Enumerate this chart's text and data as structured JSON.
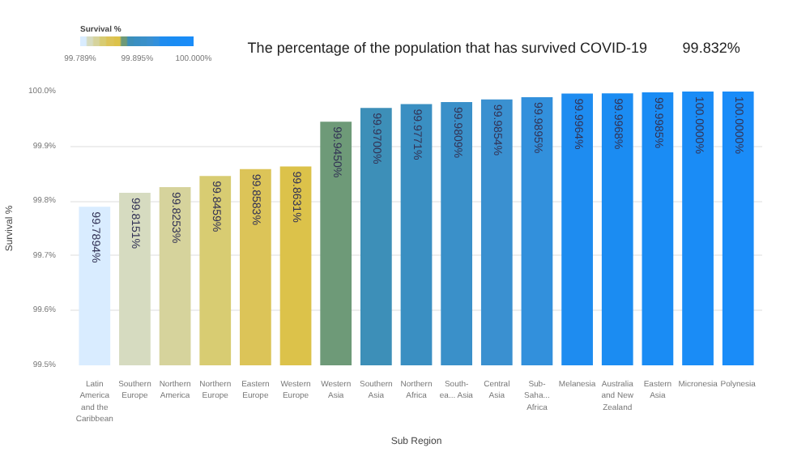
{
  "chart_data": {
    "type": "bar",
    "title": "The percentage of the population that has survived COVID-19",
    "annotations": [
      "99.832%"
    ],
    "xlabel": "Sub Region",
    "ylabel": "Survival %",
    "categories": [
      "Latin America and the Caribbean",
      "Southern Europe",
      "Northern America",
      "Northern Europe",
      "Eastern Europe",
      "Western Europe",
      "Western Asia",
      "Southern Asia",
      "Northern Africa",
      "South-ea... Asia",
      "Central Asia",
      "Sub-Saha... Africa",
      "Melanesia",
      "Australia and New Zealand",
      "Eastern Asia",
      "Micronesia",
      "Polynesia"
    ],
    "values": [
      99.7894,
      99.8151,
      99.8253,
      99.8459,
      99.8583,
      99.8631,
      99.945,
      99.97,
      99.9771,
      99.9809,
      99.9854,
      99.9895,
      99.9964,
      99.9968,
      99.9985,
      100.0,
      100.0
    ],
    "value_labels": [
      "99.7894%",
      "99.8151%",
      "99.8253%",
      "99.8459%",
      "99.8583%",
      "99.8631%",
      "99.9450%",
      "99.9700%",
      "99.9771%",
      "99.9809%",
      "99.9854%",
      "99.9895%",
      "99.9964%",
      "99.9968%",
      "99.9985%",
      "100.0000%",
      "100.0000%"
    ],
    "colors": [
      "#d9ecff",
      "#d6dbc0",
      "#d6d39c",
      "#d8cc72",
      "#dcc458",
      "#dcc24a",
      "#6e9a78",
      "#3d8fb8",
      "#3a8fc2",
      "#3a90c9",
      "#3a90d0",
      "#3290dc",
      "#1e8cf0",
      "#1b8cf2",
      "#1a8cf4",
      "#1a8cf6",
      "#1a8cf8"
    ],
    "ylim": [
      99.5,
      100.0
    ],
    "yticks": [
      {
        "value": 99.5,
        "label": "99.5%"
      },
      {
        "value": 99.6,
        "label": "99.6%"
      },
      {
        "value": 99.7,
        "label": "99.7%"
      },
      {
        "value": 99.8,
        "label": "99.8%"
      },
      {
        "value": 99.9,
        "label": "99.9%"
      },
      {
        "value": 100.0,
        "label": "100.0%"
      }
    ],
    "grid": "y",
    "clabel": "Survival %",
    "clim": [
      99.789,
      100.0
    ],
    "cticks": [
      {
        "value": 99.789,
        "label": "99.789%"
      },
      {
        "value": 99.895,
        "label": "99.895%"
      },
      {
        "value": 100.0,
        "label": "100.000%"
      }
    ]
  }
}
